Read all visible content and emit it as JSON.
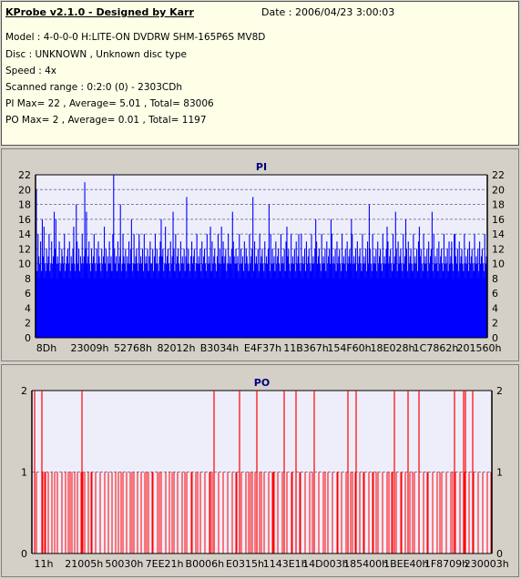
{
  "header": {
    "title": "KProbe v2.1.0 - Designed by Karr",
    "date": "Date : 2006/04/23 3:00:03",
    "lines": [
      "Model : 4-0-0-0 H:LITE-ON DVDRW SHM-165P6S MV8D",
      "Disc : UNKNOWN , Unknown disc type",
      "Speed : 4x",
      "Scanned range : 0:2:0 (0) - 2303CDh",
      "PI Max= 22 , Average= 5.01 , Total= 83006",
      "PO Max= 2 , Average= 0.01 , Total= 1197"
    ]
  },
  "chart_data": [
    {
      "type": "bar",
      "title": "PI",
      "ylim": [
        0,
        22
      ],
      "yticks": [
        0,
        2,
        4,
        6,
        8,
        10,
        12,
        14,
        16,
        18,
        20,
        22
      ],
      "xticks": [
        "8Dh",
        "23009h",
        "52768h",
        "82012h",
        "B3034h",
        "E4F37h",
        "11B367h",
        "154F60h",
        "18E028h",
        "1C7862h",
        "201560h"
      ],
      "color": "#0000ff",
      "values": [
        10,
        12,
        9,
        14,
        11,
        10,
        13,
        9,
        10,
        11,
        15,
        10,
        9,
        12,
        10,
        11,
        14,
        9,
        10,
        13,
        10,
        11,
        9,
        12,
        16,
        10,
        11,
        10,
        13,
        9,
        10,
        12,
        11,
        10,
        14,
        9,
        10,
        11,
        12,
        10,
        13,
        9,
        11,
        10,
        12,
        15,
        10,
        9,
        11,
        13,
        10,
        12,
        9,
        11,
        10,
        14,
        10,
        11,
        9,
        12,
        17,
        10,
        11,
        13,
        10,
        9,
        12,
        10,
        11,
        14,
        10,
        9,
        12,
        10,
        13,
        11,
        10,
        9,
        12,
        10,
        11,
        15,
        10,
        12,
        9,
        11,
        10,
        13,
        10,
        11,
        9,
        14,
        10,
        12,
        10,
        11,
        9,
        13,
        10,
        11,
        12,
        9,
        10,
        14,
        11,
        10,
        12,
        9,
        11,
        10,
        13,
        10,
        12,
        11,
        9,
        10,
        14,
        10,
        11,
        12,
        10,
        9,
        13,
        10,
        11,
        10,
        12,
        9,
        14,
        10,
        11,
        10,
        12,
        9,
        11,
        13,
        10,
        10,
        12,
        9,
        11,
        14,
        10,
        12,
        10,
        9,
        11,
        13,
        10,
        11,
        12,
        9,
        10,
        15,
        10,
        11,
        12,
        10,
        9,
        13,
        10,
        11,
        10,
        12,
        9,
        14,
        10,
        11,
        12,
        10,
        9,
        13,
        10,
        11,
        10,
        12,
        9,
        11,
        14,
        10,
        12,
        10,
        9,
        11,
        13,
        10,
        11,
        12,
        9,
        10,
        14,
        10,
        11,
        10,
        12,
        9,
        13,
        10,
        11,
        12,
        10,
        9,
        14,
        10,
        11,
        10,
        12,
        9,
        13,
        10,
        11,
        12,
        10,
        9,
        11,
        14,
        10,
        12,
        10,
        9,
        11,
        13,
        10,
        11,
        12,
        9,
        10,
        14,
        10,
        11,
        10,
        12,
        9,
        13,
        11,
        10,
        12,
        10,
        11,
        9,
        14,
        10,
        12,
        10,
        11,
        9,
        13,
        10,
        12,
        11,
        10,
        9,
        14,
        10,
        11,
        12,
        10,
        9,
        13,
        10,
        11,
        10,
        12,
        9,
        14,
        10,
        11,
        12,
        10,
        9,
        13,
        10,
        11,
        10,
        12,
        11,
        9,
        14,
        10,
        12,
        10,
        11,
        9,
        13,
        10,
        11,
        12,
        10,
        9,
        14,
        10,
        11,
        10,
        12,
        9,
        13,
        10,
        11,
        12,
        10,
        9,
        14,
        10,
        11,
        10,
        12,
        9,
        13,
        10,
        11,
        12,
        10,
        9,
        14,
        10,
        11,
        10,
        12,
        9,
        13,
        10,
        11,
        12,
        10,
        9,
        14,
        10,
        11,
        10,
        12,
        9,
        13,
        10,
        11,
        12,
        10,
        9,
        14,
        10,
        11,
        10,
        12,
        9,
        13,
        10,
        11,
        12,
        10,
        9,
        14,
        10,
        11,
        10,
        12,
        9,
        13,
        10,
        11,
        12,
        10,
        9,
        14,
        10,
        11,
        10,
        12,
        9,
        13,
        10,
        11,
        12,
        10,
        9,
        14,
        10,
        11,
        10,
        12,
        9,
        13,
        10,
        11,
        12,
        10,
        9,
        14,
        10,
        11,
        10,
        12,
        9,
        13,
        10,
        11,
        12,
        10,
        9,
        14,
        10,
        11,
        10,
        12,
        9,
        13,
        10,
        11,
        12,
        10,
        9,
        14,
        10,
        11,
        10,
        12,
        9,
        13,
        10,
        11,
        12,
        10,
        9,
        14,
        10,
        11,
        10,
        12,
        9,
        13,
        10,
        11,
        12,
        10,
        9,
        14,
        10,
        11,
        10,
        12,
        9,
        13,
        10,
        11,
        12,
        10,
        9,
        14,
        10,
        11,
        10,
        12,
        9,
        13,
        10,
        11,
        12,
        10,
        9,
        14,
        10,
        11,
        10,
        12,
        9,
        13,
        10,
        11,
        12,
        10,
        9,
        14,
        10,
        11,
        10,
        12,
        9,
        13,
        10,
        11,
        12,
        10,
        9,
        14,
        10,
        11,
        10,
        12,
        9,
        13,
        10,
        11,
        12,
        10,
        9,
        14,
        10,
        11,
        10,
        12,
        9,
        13,
        10,
        11,
        12,
        10,
        9,
        14,
        10,
        11,
        10,
        12,
        9,
        13,
        10,
        11,
        12,
        10,
        9,
        14,
        10,
        11,
        10,
        12,
        9,
        13,
        10,
        11,
        12,
        10,
        9,
        14,
        10,
        11
      ],
      "peaks": [
        [
          1,
          20
        ],
        [
          8,
          16
        ],
        [
          22,
          17
        ],
        [
          48,
          18
        ],
        [
          58,
          21
        ],
        [
          92,
          22
        ],
        [
          100,
          18
        ],
        [
          113,
          16
        ],
        [
          122,
          14
        ],
        [
          148,
          16
        ],
        [
          162,
          17
        ],
        [
          178,
          19
        ],
        [
          206,
          15
        ],
        [
          219,
          15
        ],
        [
          232,
          17
        ],
        [
          256,
          19
        ],
        [
          275,
          18
        ],
        [
          296,
          15
        ],
        [
          310,
          14
        ],
        [
          330,
          16
        ],
        [
          348,
          16
        ],
        [
          372,
          16
        ],
        [
          393,
          18
        ],
        [
          414,
          15
        ],
        [
          424,
          17
        ],
        [
          436,
          16
        ],
        [
          452,
          15
        ],
        [
          467,
          17
        ],
        [
          490,
          13
        ],
        [
          494,
          14
        ]
      ]
    },
    {
      "type": "bar",
      "title": "PO",
      "ylim": [
        0,
        2
      ],
      "yticks": [
        0,
        1,
        2
      ],
      "xticks": [
        "11h",
        "21005h",
        "50030h",
        "7EE21h",
        "B0006h",
        "E0315h",
        "1143E1h",
        "14D003h",
        "185400h",
        "1BEE40h",
        "1F8709h",
        "230003h"
      ],
      "color": "#ff0000",
      "ones": [
        5,
        12,
        15,
        18,
        22,
        25,
        28,
        33,
        37,
        40,
        44,
        47,
        50,
        54,
        58,
        62,
        65,
        70,
        75,
        80,
        84,
        88,
        92,
        95,
        100,
        104,
        108,
        112,
        116,
        120,
        124,
        128,
        133,
        138,
        142,
        147,
        151,
        156,
        160,
        165,
        170,
        175,
        180,
        185,
        190,
        195,
        200,
        205,
        210,
        215,
        220,
        225,
        230,
        235,
        240,
        245,
        250,
        255,
        260,
        265,
        270,
        275,
        280,
        285,
        290,
        295,
        300,
        305,
        310,
        315,
        320,
        325,
        330,
        335,
        340,
        345,
        350,
        355,
        360,
        365,
        370,
        375,
        380,
        385,
        390,
        395,
        400,
        405,
        410,
        415,
        420,
        425,
        430,
        435,
        440,
        445,
        450,
        455,
        460,
        465,
        470,
        475,
        480,
        485,
        490,
        495,
        500
      ],
      "twos": [
        3,
        11,
        55,
        200,
        228,
        247,
        277,
        290,
        310,
        347,
        356,
        398,
        413,
        425,
        464,
        474,
        476,
        484
      ]
    }
  ]
}
